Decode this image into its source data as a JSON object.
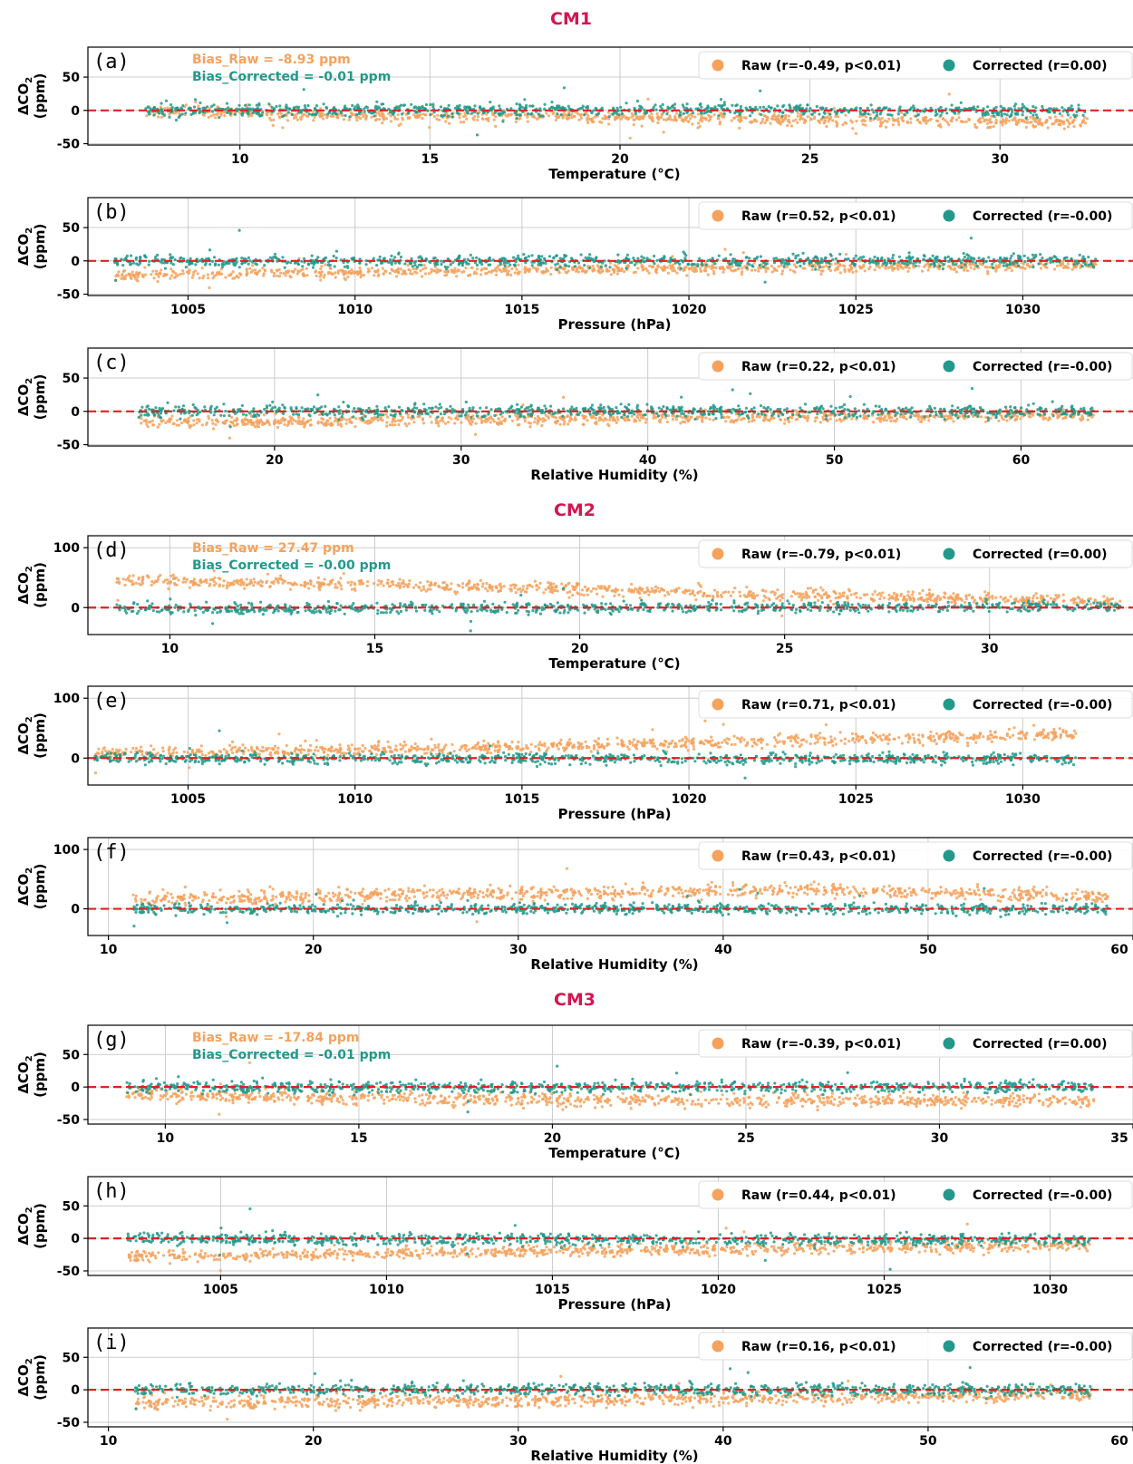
{
  "colors": {
    "raw": "#f5a25d",
    "corrected": "#22998a",
    "zero_line": "#e02020",
    "header": "#d1174e"
  },
  "ylabel": {
    "main": "ΔCO",
    "sub": "2",
    "unit": "(ppm)"
  },
  "chart_data": [
    {
      "panel": "(a)",
      "group": "CM1",
      "type": "scatter",
      "xlabel": "Temperature (°C)",
      "xlim": [
        6,
        33.5
      ],
      "xticks": [
        10,
        15,
        20,
        25,
        30
      ],
      "ylim": [
        -52,
        95
      ],
      "yticks": [
        50,
        0,
        -50
      ],
      "legend": {
        "raw": "Raw (r=-0.49, p<0.01)",
        "corrected": "Corrected (r=0.00)"
      },
      "bias": {
        "raw": "Bias_Raw = -8.93 ppm",
        "corrected": "Bias_Corrected = -0.01 ppm"
      },
      "series": [
        {
          "label": "Raw",
          "x_range": [
            7.5,
            32.3
          ],
          "trend": [
            [
              7.5,
              0
            ],
            [
              12,
              -8
            ],
            [
              20,
              -10
            ],
            [
              32.3,
              -18
            ]
          ],
          "spread": 8
        },
        {
          "label": "Corrected",
          "x_range": [
            7.5,
            32.3
          ],
          "trend": [
            [
              7.5,
              0
            ],
            [
              20,
              2
            ],
            [
              32.3,
              -2
            ]
          ],
          "spread": 8
        }
      ]
    },
    {
      "panel": "(b)",
      "group": "CM1",
      "type": "scatter",
      "xlabel": "Pressure (hPa)",
      "xlim": [
        1002,
        1033.3
      ],
      "xticks": [
        1005,
        1010,
        1015,
        1020,
        1025,
        1030
      ],
      "ylim": [
        -52,
        95
      ],
      "yticks": [
        50,
        0,
        -50
      ],
      "legend": {
        "raw": "Raw (r=0.52, p<0.01)",
        "corrected": "Corrected (r=-0.00)"
      },
      "series": [
        {
          "label": "Raw",
          "x_range": [
            1002.8,
            1032.2
          ],
          "trend": [
            [
              1002.8,
              -22
            ],
            [
              1015,
              -14
            ],
            [
              1032,
              -6
            ]
          ],
          "spread": 7
        },
        {
          "label": "Corrected",
          "x_range": [
            1002.8,
            1032.2
          ],
          "trend": [
            [
              1002.8,
              0
            ],
            [
              1032,
              0
            ]
          ],
          "spread": 8
        }
      ]
    },
    {
      "panel": "(c)",
      "group": "CM1",
      "type": "scatter",
      "xlabel": "Relative Humidity (%)",
      "xlim": [
        10,
        66
      ],
      "xticks": [
        20,
        30,
        40,
        50,
        60
      ],
      "ylim": [
        -52,
        95
      ],
      "yticks": [
        50,
        0,
        -50
      ],
      "legend": {
        "raw": "Raw (r=0.22, p<0.01)",
        "corrected": "Corrected (r=-0.00)"
      },
      "series": [
        {
          "label": "Raw",
          "x_range": [
            12.7,
            63.9
          ],
          "trend": [
            [
              12.7,
              -16
            ],
            [
              40,
              -10
            ],
            [
              63.9,
              -6
            ]
          ],
          "spread": 8
        },
        {
          "label": "Corrected",
          "x_range": [
            12.7,
            63.9
          ],
          "trend": [
            [
              12.7,
              0
            ],
            [
              63.9,
              0
            ]
          ],
          "spread": 8
        }
      ]
    },
    {
      "panel": "(d)",
      "group": "CM2",
      "type": "scatter",
      "xlabel": "Temperature (°C)",
      "xlim": [
        8,
        33.5
      ],
      "xticks": [
        10,
        15,
        20,
        25,
        30
      ],
      "ylim": [
        -45,
        120
      ],
      "yticks": [
        100,
        0
      ],
      "legend": {
        "raw": "Raw (r=-0.79, p<0.01)",
        "corrected": "Corrected (r=0.00)"
      },
      "bias": {
        "raw": "Bias_Raw = 27.47 ppm",
        "corrected": "Bias_Corrected = -0.00 ppm"
      },
      "series": [
        {
          "label": "Raw",
          "x_range": [
            8.7,
            33.2
          ],
          "trend": [
            [
              8.7,
              45
            ],
            [
              15,
              40
            ],
            [
              25,
              22
            ],
            [
              33.2,
              8
            ]
          ],
          "spread": 9
        },
        {
          "label": "Corrected",
          "x_range": [
            8.7,
            33.2
          ],
          "trend": [
            [
              8.7,
              -2
            ],
            [
              33.2,
              2
            ]
          ],
          "spread": 8
        }
      ]
    },
    {
      "panel": "(e)",
      "group": "CM2",
      "type": "scatter",
      "xlabel": "Pressure (hPa)",
      "xlim": [
        1002,
        1033.3
      ],
      "xticks": [
        1005,
        1010,
        1015,
        1020,
        1025,
        1030
      ],
      "ylim": [
        -45,
        120
      ],
      "yticks": [
        100,
        0
      ],
      "legend": {
        "raw": "Raw (r=0.71, p<0.01)",
        "corrected": "Corrected (r=-0.00)"
      },
      "series": [
        {
          "label": "Raw",
          "x_range": [
            1002.2,
            1031.6
          ],
          "trend": [
            [
              1002.2,
              8
            ],
            [
              1015,
              18
            ],
            [
              1025,
              32
            ],
            [
              1031.6,
              40
            ]
          ],
          "spread": 9
        },
        {
          "label": "Corrected",
          "x_range": [
            1002.2,
            1031.6
          ],
          "trend": [
            [
              1002.2,
              0
            ],
            [
              1031.6,
              -2
            ]
          ],
          "spread": 8
        }
      ]
    },
    {
      "panel": "(f)",
      "group": "CM2",
      "type": "scatter",
      "xlabel": "Relative Humidity (%)",
      "xlim": [
        9,
        60
      ],
      "xticks": [
        10,
        20,
        30,
        40,
        50,
        60
      ],
      "ylim": [
        -45,
        120
      ],
      "yticks": [
        100,
        0
      ],
      "legend": {
        "raw": "Raw (r=0.43, p<0.01)",
        "corrected": "Corrected (r=-0.00)"
      },
      "series": [
        {
          "label": "Raw",
          "x_range": [
            11.2,
            58.8
          ],
          "trend": [
            [
              11.2,
              15
            ],
            [
              25,
              25
            ],
            [
              45,
              32
            ],
            [
              58.8,
              20
            ]
          ],
          "spread": 10
        },
        {
          "label": "Corrected",
          "x_range": [
            11.2,
            58.8
          ],
          "trend": [
            [
              11.2,
              0
            ],
            [
              58.8,
              0
            ]
          ],
          "spread": 8
        }
      ]
    },
    {
      "panel": "(g)",
      "group": "CM3",
      "type": "scatter",
      "xlabel": "Temperature (°C)",
      "xlim": [
        8,
        35
      ],
      "xticks": [
        10,
        15,
        20,
        25,
        30,
        35
      ],
      "ylim": [
        -57,
        95
      ],
      "yticks": [
        50,
        0,
        -50
      ],
      "legend": {
        "raw": "Raw (r=-0.39, p<0.01)",
        "corrected": "Corrected (r=0.00)"
      },
      "bias": {
        "raw": "Bias_Raw = -17.84 ppm",
        "corrected": "Bias_Corrected = -0.01 ppm"
      },
      "series": [
        {
          "label": "Raw",
          "x_range": [
            9,
            34
          ],
          "trend": [
            [
              9,
              -12
            ],
            [
              20,
              -20
            ],
            [
              34,
              -22
            ]
          ],
          "spread": 9
        },
        {
          "label": "Corrected",
          "x_range": [
            9,
            34
          ],
          "trend": [
            [
              9,
              0
            ],
            [
              34,
              0
            ]
          ],
          "spread": 8
        }
      ]
    },
    {
      "panel": "(h)",
      "group": "CM3",
      "type": "scatter",
      "xlabel": "Pressure (hPa)",
      "xlim": [
        1001,
        1032.5
      ],
      "xticks": [
        1005,
        1010,
        1015,
        1020,
        1025,
        1030
      ],
      "ylim": [
        -57,
        95
      ],
      "yticks": [
        50,
        0,
        -50
      ],
      "legend": {
        "raw": "Raw (r=0.44, p<0.01)",
        "corrected": "Corrected (r=-0.00)"
      },
      "series": [
        {
          "label": "Raw",
          "x_range": [
            1002.2,
            1031.2
          ],
          "trend": [
            [
              1002.2,
              -28
            ],
            [
              1015,
              -20
            ],
            [
              1031,
              -10
            ]
          ],
          "spread": 8
        },
        {
          "label": "Corrected",
          "x_range": [
            1002.2,
            1031.2
          ],
          "trend": [
            [
              1002.2,
              0
            ],
            [
              1031,
              -3
            ]
          ],
          "spread": 8
        }
      ]
    },
    {
      "panel": "(i)",
      "group": "CM3",
      "type": "scatter",
      "xlabel": "Relative Humidity (%)",
      "xlim": [
        9,
        60
      ],
      "xticks": [
        10,
        20,
        30,
        40,
        50,
        60
      ],
      "ylim": [
        -57,
        95
      ],
      "yticks": [
        50,
        0,
        -50
      ],
      "legend": {
        "raw": "Raw (r=0.16, p<0.01)",
        "corrected": "Corrected (r=-0.00)"
      },
      "series": [
        {
          "label": "Raw",
          "x_range": [
            11.3,
            58
          ],
          "trend": [
            [
              11.3,
              -20
            ],
            [
              35,
              -15
            ],
            [
              58,
              -8
            ]
          ],
          "spread": 9
        },
        {
          "label": "Corrected",
          "x_range": [
            11.3,
            58
          ],
          "trend": [
            [
              11.3,
              0
            ],
            [
              58,
              0
            ]
          ],
          "spread": 8
        }
      ]
    }
  ],
  "groups": [
    {
      "title": "CM1"
    },
    {
      "title": "CM2"
    },
    {
      "title": "CM3"
    }
  ]
}
